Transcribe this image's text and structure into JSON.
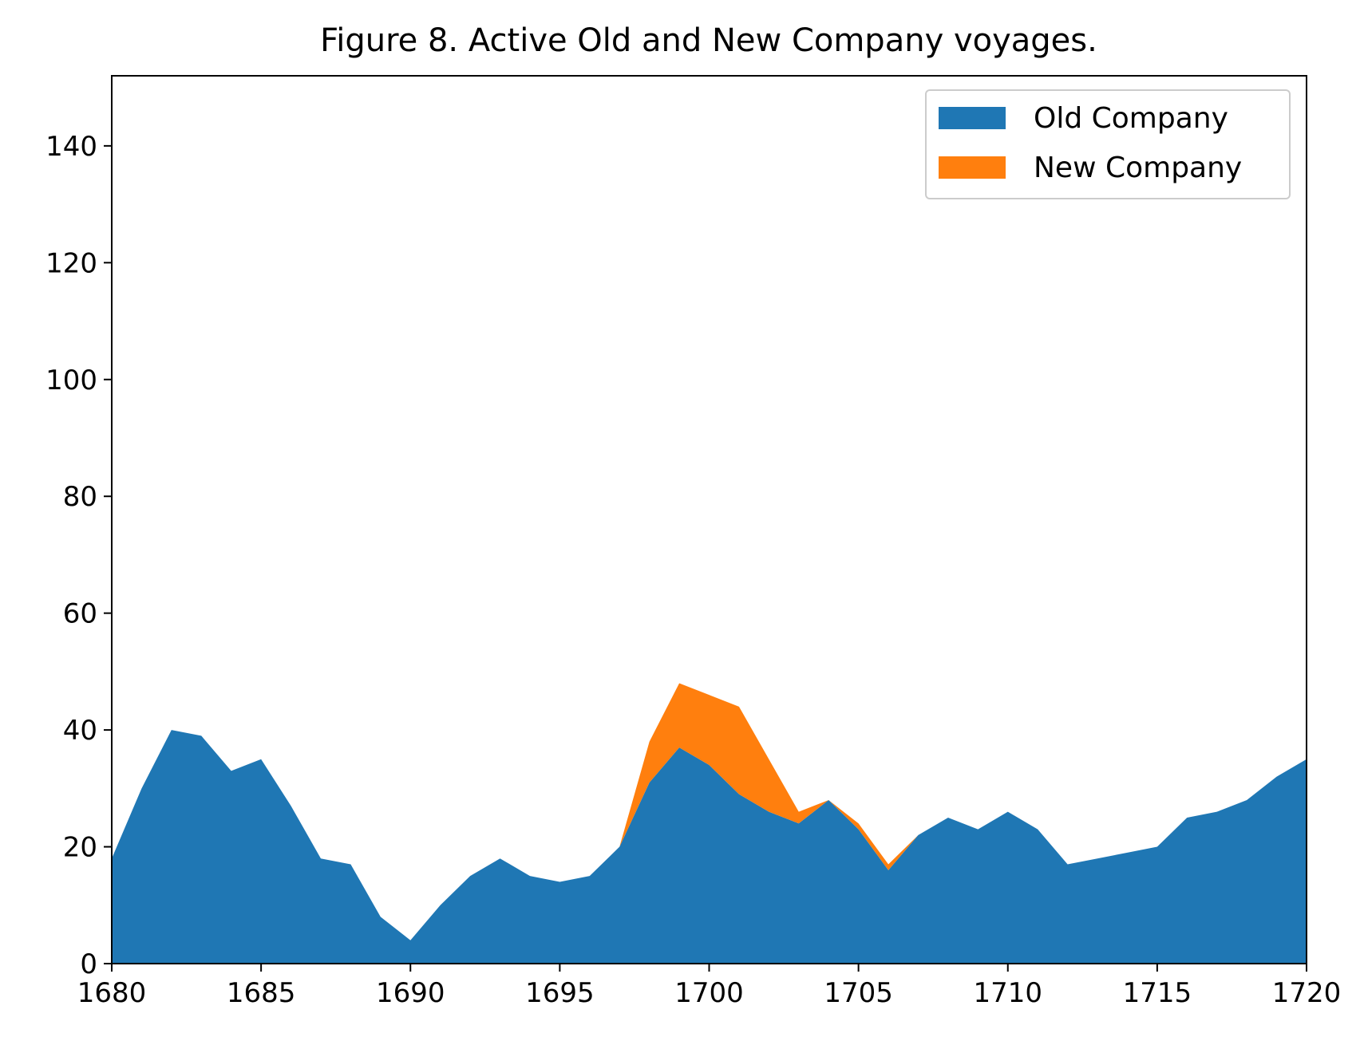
{
  "chart_data": {
    "type": "area",
    "stacked": true,
    "title": "Figure 8. Active Old and New Company voyages.",
    "xlabel": "",
    "ylabel": "",
    "xlim": [
      1680,
      1720
    ],
    "ylim": [
      0,
      152
    ],
    "xticks": [
      1680,
      1685,
      1690,
      1695,
      1700,
      1705,
      1710,
      1715,
      1720
    ],
    "yticks": [
      0,
      20,
      40,
      60,
      80,
      100,
      120,
      140
    ],
    "grid": false,
    "legend": "top-right",
    "x": [
      1680,
      1681,
      1682,
      1683,
      1684,
      1685,
      1686,
      1687,
      1688,
      1689,
      1690,
      1691,
      1692,
      1693,
      1694,
      1695,
      1696,
      1697,
      1698,
      1699,
      1700,
      1701,
      1702,
      1703,
      1704,
      1705,
      1706,
      1707,
      1708,
      1709,
      1710,
      1711,
      1712,
      1713,
      1714,
      1715,
      1716,
      1717,
      1718,
      1719,
      1720
    ],
    "series": [
      {
        "name": "Old Company",
        "color": "#1f77b4",
        "values": [
          18,
          30,
          40,
          39,
          33,
          35,
          27,
          18,
          17,
          8,
          4,
          10,
          15,
          18,
          15,
          14,
          15,
          20,
          31,
          37,
          34,
          29,
          26,
          24,
          28,
          23,
          16,
          22,
          25,
          23,
          26,
          23,
          17,
          18,
          19,
          20,
          25,
          26,
          28,
          32,
          35
        ]
      },
      {
        "name": "New Company",
        "color": "#ff7f0e",
        "values": [
          0,
          0,
          0,
          0,
          0,
          0,
          0,
          0,
          0,
          0,
          0,
          0,
          0,
          0,
          0,
          0,
          0,
          0,
          7,
          11,
          12,
          15,
          9,
          2,
          0,
          1,
          1,
          0,
          0,
          0,
          0,
          0,
          0,
          0,
          0,
          0,
          0,
          0,
          0,
          0,
          0
        ]
      }
    ]
  }
}
